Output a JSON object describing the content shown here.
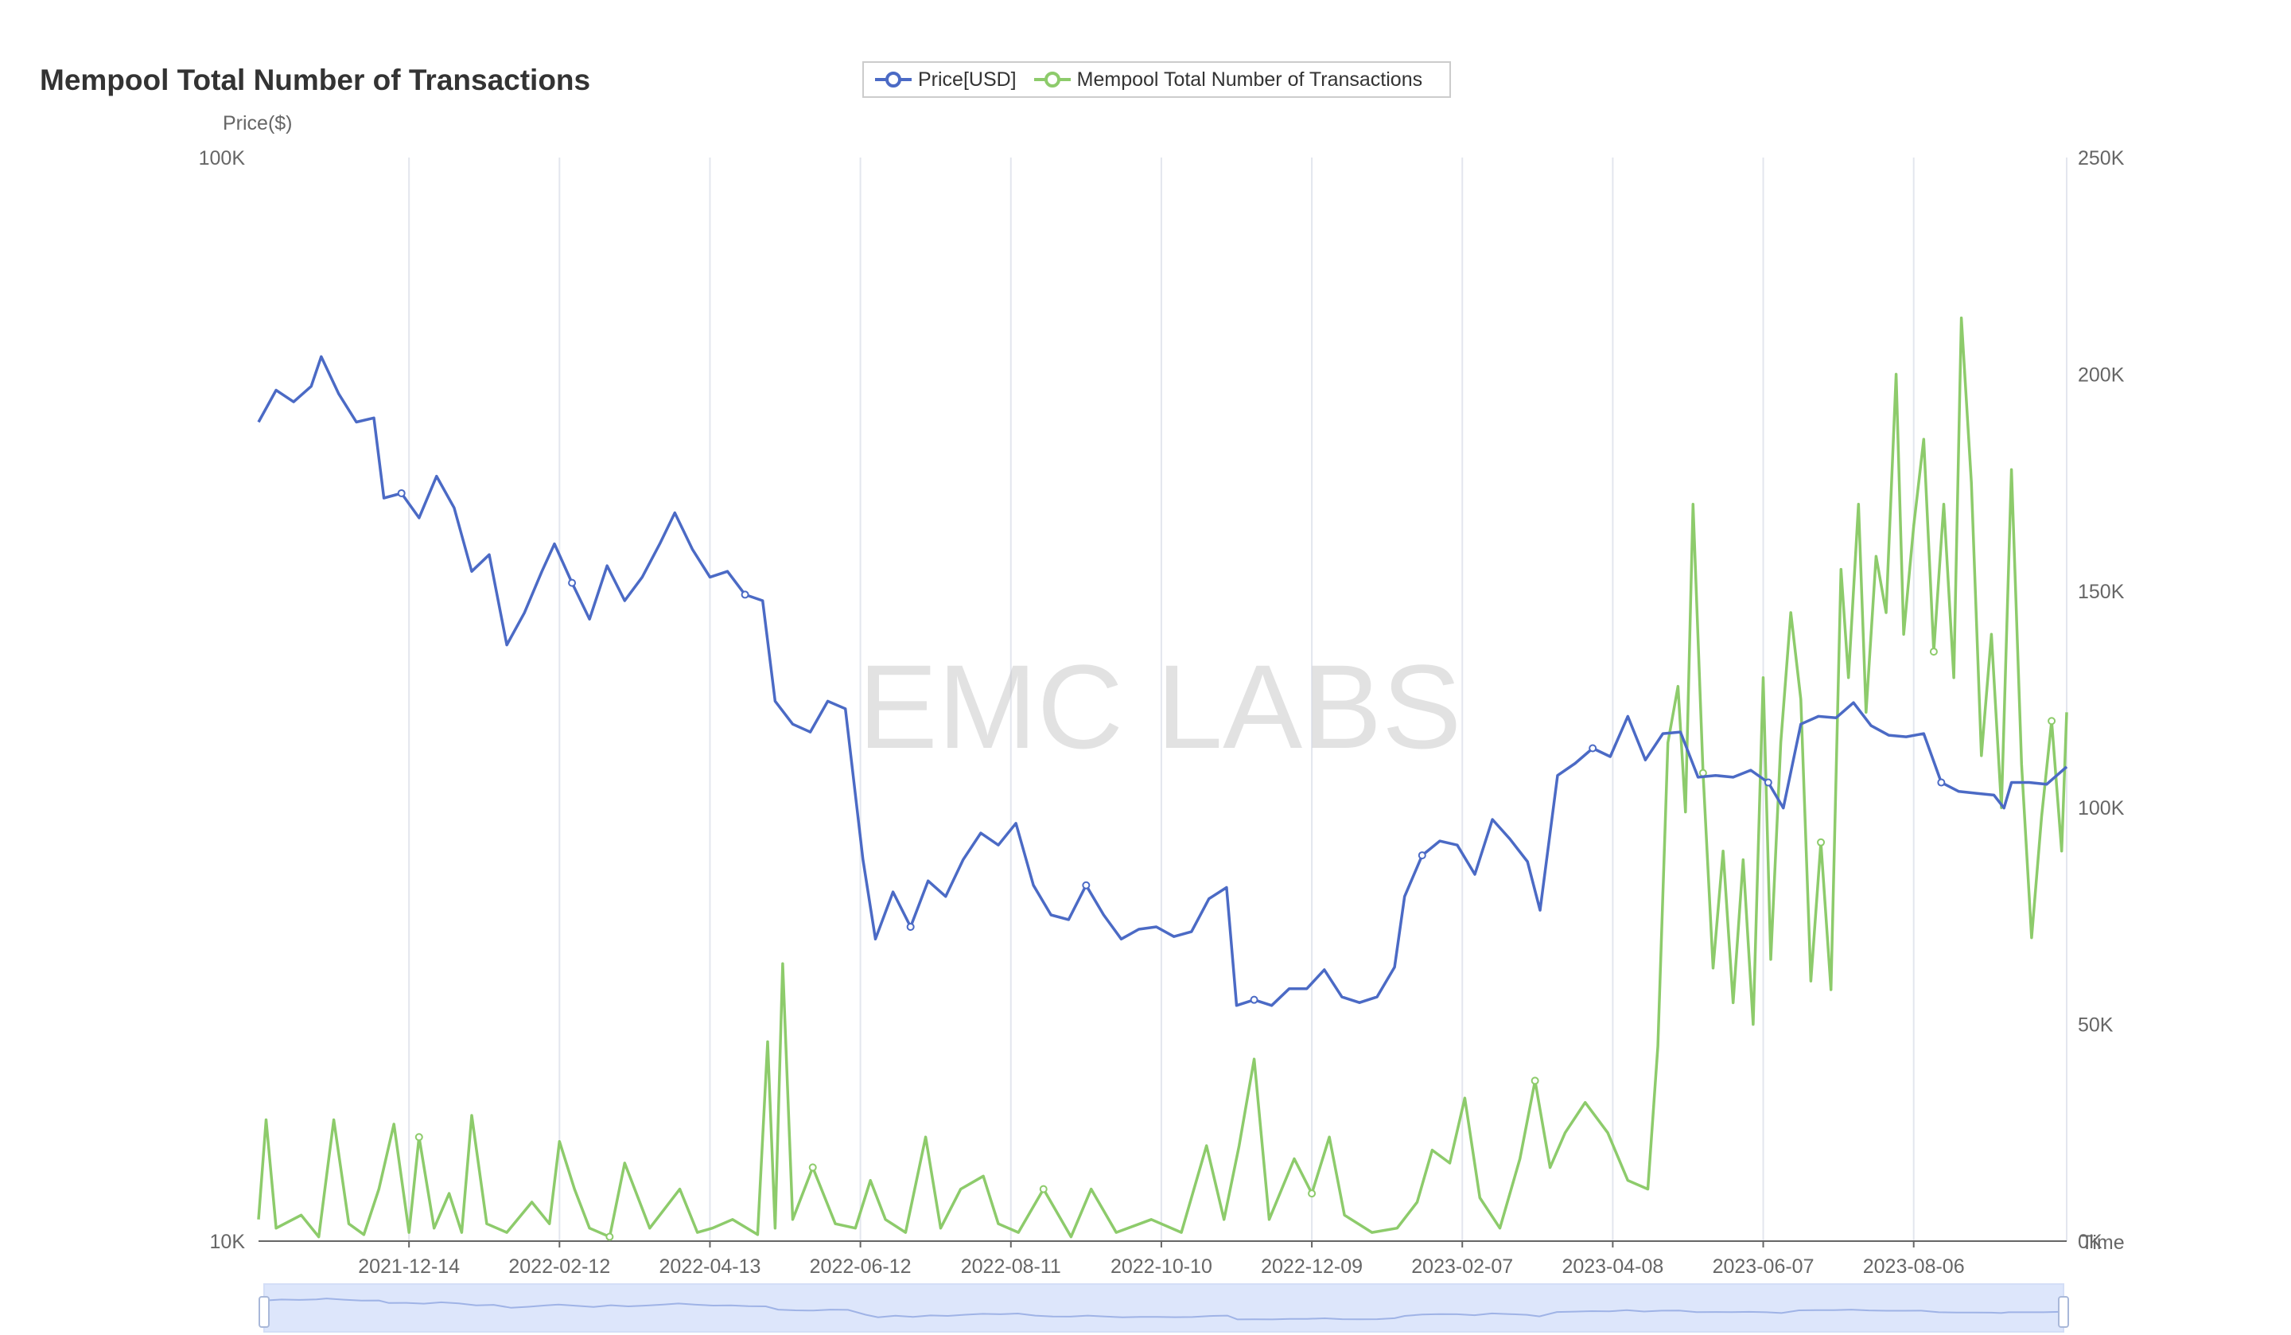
{
  "title": "Mempool Total Number of Transactions",
  "watermark": "EMC LABS",
  "legend": [
    {
      "name": "Price[USD]",
      "color": "#4B6AC5"
    },
    {
      "name": "Mempool Total Number of Transactions",
      "color": "#8DCB6B"
    }
  ],
  "chart_data": {
    "type": "line",
    "title": "Mempool Total Number of Transactions",
    "xlabel": "Time",
    "ylabel": "Price($)",
    "x_ticks": [
      "2021-12-14",
      "2022-02-12",
      "2022-04-13",
      "2022-06-12",
      "2022-08-11",
      "2022-10-10",
      "2022-12-09",
      "2023-02-07",
      "2023-04-08",
      "2023-06-07",
      "2023-08-06"
    ],
    "y_left": {
      "scale": "log",
      "min": 10000,
      "max": 100000,
      "ticks": [
        "10K",
        "100K"
      ]
    },
    "y_right": {
      "scale": "linear",
      "min": 0,
      "max": 250000,
      "ticks": [
        "0K",
        "50K",
        "100K",
        "150K",
        "200K",
        "250K"
      ]
    },
    "grid": "vertical",
    "legend_position": "top-center",
    "series": [
      {
        "name": "Price[USD]",
        "axis": "left",
        "color": "#4B6AC5",
        "points": [
          [
            "2021-10-15",
            57000
          ],
          [
            "2021-10-22",
            61000
          ],
          [
            "2021-10-29",
            59500
          ],
          [
            "2021-11-05",
            61500
          ],
          [
            "2021-11-09",
            65500
          ],
          [
            "2021-11-16",
            60500
          ],
          [
            "2021-11-23",
            57000
          ],
          [
            "2021-11-30",
            57500
          ],
          [
            "2021-12-04",
            48500
          ],
          [
            "2021-12-11",
            49000
          ],
          [
            "2021-12-18",
            46500
          ],
          [
            "2021-12-25",
            50800
          ],
          [
            "2022-01-01",
            47500
          ],
          [
            "2022-01-08",
            41500
          ],
          [
            "2022-01-15",
            43000
          ],
          [
            "2022-01-22",
            35500
          ],
          [
            "2022-01-29",
            38000
          ],
          [
            "2022-02-05",
            41500
          ],
          [
            "2022-02-10",
            44000
          ],
          [
            "2022-02-17",
            40500
          ],
          [
            "2022-02-24",
            37500
          ],
          [
            "2022-03-03",
            42000
          ],
          [
            "2022-03-10",
            39000
          ],
          [
            "2022-03-17",
            41000
          ],
          [
            "2022-03-24",
            44000
          ],
          [
            "2022-03-30",
            47000
          ],
          [
            "2022-04-06",
            43500
          ],
          [
            "2022-04-13",
            41000
          ],
          [
            "2022-04-20",
            41500
          ],
          [
            "2022-04-27",
            39500
          ],
          [
            "2022-05-04",
            39000
          ],
          [
            "2022-05-09",
            31500
          ],
          [
            "2022-05-16",
            30000
          ],
          [
            "2022-05-23",
            29500
          ],
          [
            "2022-05-30",
            31500
          ],
          [
            "2022-06-06",
            31000
          ],
          [
            "2022-06-13",
            22500
          ],
          [
            "2022-06-18",
            19000
          ],
          [
            "2022-06-25",
            21000
          ],
          [
            "2022-07-02",
            19500
          ],
          [
            "2022-07-09",
            21500
          ],
          [
            "2022-07-16",
            20800
          ],
          [
            "2022-07-23",
            22500
          ],
          [
            "2022-07-30",
            23800
          ],
          [
            "2022-08-06",
            23200
          ],
          [
            "2022-08-13",
            24300
          ],
          [
            "2022-08-20",
            21300
          ],
          [
            "2022-08-27",
            20000
          ],
          [
            "2022-09-03",
            19800
          ],
          [
            "2022-09-10",
            21300
          ],
          [
            "2022-09-17",
            20000
          ],
          [
            "2022-09-24",
            19000
          ],
          [
            "2022-10-01",
            19400
          ],
          [
            "2022-10-08",
            19500
          ],
          [
            "2022-10-15",
            19100
          ],
          [
            "2022-10-22",
            19300
          ],
          [
            "2022-10-29",
            20700
          ],
          [
            "2022-11-05",
            21200
          ],
          [
            "2022-11-09",
            16500
          ],
          [
            "2022-11-16",
            16700
          ],
          [
            "2022-11-23",
            16500
          ],
          [
            "2022-11-30",
            17100
          ],
          [
            "2022-12-07",
            17100
          ],
          [
            "2022-12-14",
            17800
          ],
          [
            "2022-12-21",
            16800
          ],
          [
            "2022-12-28",
            16600
          ],
          [
            "2023-01-04",
            16800
          ],
          [
            "2023-01-11",
            17900
          ],
          [
            "2023-01-15",
            20800
          ],
          [
            "2023-01-22",
            22700
          ],
          [
            "2023-01-29",
            23400
          ],
          [
            "2023-02-05",
            23200
          ],
          [
            "2023-02-12",
            21800
          ],
          [
            "2023-02-19",
            24500
          ],
          [
            "2023-02-26",
            23500
          ],
          [
            "2023-03-05",
            22400
          ],
          [
            "2023-03-10",
            20200
          ],
          [
            "2023-03-17",
            26900
          ],
          [
            "2023-03-24",
            27600
          ],
          [
            "2023-03-31",
            28500
          ],
          [
            "2023-04-07",
            28000
          ],
          [
            "2023-04-14",
            30500
          ],
          [
            "2023-04-21",
            27800
          ],
          [
            "2023-04-28",
            29400
          ],
          [
            "2023-05-05",
            29500
          ],
          [
            "2023-05-12",
            26800
          ],
          [
            "2023-05-19",
            26900
          ],
          [
            "2023-05-26",
            26800
          ],
          [
            "2023-06-02",
            27200
          ],
          [
            "2023-06-09",
            26500
          ],
          [
            "2023-06-15",
            25100
          ],
          [
            "2023-06-22",
            30000
          ],
          [
            "2023-06-29",
            30500
          ],
          [
            "2023-07-06",
            30400
          ],
          [
            "2023-07-13",
            31400
          ],
          [
            "2023-07-20",
            29900
          ],
          [
            "2023-07-27",
            29300
          ],
          [
            "2023-08-03",
            29200
          ],
          [
            "2023-08-10",
            29400
          ],
          [
            "2023-08-17",
            26500
          ],
          [
            "2023-08-24",
            26000
          ],
          [
            "2023-08-31",
            25900
          ],
          [
            "2023-09-07",
            25800
          ],
          [
            "2023-09-11",
            25100
          ],
          [
            "2023-09-14",
            26500
          ],
          [
            "2023-09-21",
            26500
          ],
          [
            "2023-09-28",
            26400
          ],
          [
            "2023-10-06",
            27400
          ]
        ]
      },
      {
        "name": "Mempool Total Number of Transactions",
        "axis": "right",
        "color": "#8DCB6B",
        "points": [
          [
            "2021-10-15",
            5000
          ],
          [
            "2021-10-18",
            28000
          ],
          [
            "2021-10-22",
            3000
          ],
          [
            "2021-11-01",
            6000
          ],
          [
            "2021-11-08",
            1000
          ],
          [
            "2021-11-14",
            28000
          ],
          [
            "2021-11-20",
            4000
          ],
          [
            "2021-11-26",
            1500
          ],
          [
            "2021-12-02",
            12000
          ],
          [
            "2021-12-08",
            27000
          ],
          [
            "2021-12-14",
            2000
          ],
          [
            "2021-12-18",
            24000
          ],
          [
            "2021-12-24",
            3000
          ],
          [
            "2021-12-30",
            11000
          ],
          [
            "2022-01-04",
            2000
          ],
          [
            "2022-01-08",
            29000
          ],
          [
            "2022-01-14",
            4000
          ],
          [
            "2022-01-22",
            2000
          ],
          [
            "2022-02-01",
            9000
          ],
          [
            "2022-02-08",
            4000
          ],
          [
            "2022-02-12",
            23000
          ],
          [
            "2022-02-18",
            12000
          ],
          [
            "2022-02-24",
            3000
          ],
          [
            "2022-03-04",
            1000
          ],
          [
            "2022-03-10",
            18000
          ],
          [
            "2022-03-20",
            3000
          ],
          [
            "2022-04-01",
            12000
          ],
          [
            "2022-04-08",
            2000
          ],
          [
            "2022-04-14",
            3000
          ],
          [
            "2022-04-22",
            5000
          ],
          [
            "2022-05-02",
            1500
          ],
          [
            "2022-05-06",
            46000
          ],
          [
            "2022-05-09",
            3000
          ],
          [
            "2022-05-12",
            64000
          ],
          [
            "2022-05-16",
            5000
          ],
          [
            "2022-05-24",
            17000
          ],
          [
            "2022-06-02",
            4000
          ],
          [
            "2022-06-10",
            3000
          ],
          [
            "2022-06-16",
            14000
          ],
          [
            "2022-06-22",
            5000
          ],
          [
            "2022-06-30",
            2000
          ],
          [
            "2022-07-08",
            24000
          ],
          [
            "2022-07-14",
            3000
          ],
          [
            "2022-07-22",
            12000
          ],
          [
            "2022-07-31",
            15000
          ],
          [
            "2022-08-06",
            4000
          ],
          [
            "2022-08-14",
            2000
          ],
          [
            "2022-08-24",
            12000
          ],
          [
            "2022-09-04",
            1000
          ],
          [
            "2022-09-12",
            12000
          ],
          [
            "2022-09-22",
            2000
          ],
          [
            "2022-10-06",
            5000
          ],
          [
            "2022-10-18",
            2000
          ],
          [
            "2022-10-28",
            22000
          ],
          [
            "2022-11-04",
            5000
          ],
          [
            "2022-11-10",
            22000
          ],
          [
            "2022-11-16",
            42000
          ],
          [
            "2022-11-22",
            5000
          ],
          [
            "2022-12-02",
            19000
          ],
          [
            "2022-12-09",
            11000
          ],
          [
            "2022-12-16",
            24000
          ],
          [
            "2022-12-22",
            6000
          ],
          [
            "2023-01-02",
            2000
          ],
          [
            "2023-01-12",
            3000
          ],
          [
            "2023-01-20",
            9000
          ],
          [
            "2023-01-26",
            21000
          ],
          [
            "2023-02-02",
            18000
          ],
          [
            "2023-02-08",
            33000
          ],
          [
            "2023-02-14",
            10000
          ],
          [
            "2023-02-22",
            3000
          ],
          [
            "2023-03-02",
            19000
          ],
          [
            "2023-03-08",
            37000
          ],
          [
            "2023-03-14",
            17000
          ],
          [
            "2023-03-20",
            25000
          ],
          [
            "2023-03-28",
            32000
          ],
          [
            "2023-04-06",
            25000
          ],
          [
            "2023-04-14",
            14000
          ],
          [
            "2023-04-22",
            12000
          ],
          [
            "2023-04-26",
            45000
          ],
          [
            "2023-04-30",
            115000
          ],
          [
            "2023-05-04",
            128000
          ],
          [
            "2023-05-07",
            99000
          ],
          [
            "2023-05-10",
            170000
          ],
          [
            "2023-05-14",
            108000
          ],
          [
            "2023-05-18",
            63000
          ],
          [
            "2023-05-22",
            90000
          ],
          [
            "2023-05-26",
            55000
          ],
          [
            "2023-05-30",
            88000
          ],
          [
            "2023-06-03",
            50000
          ],
          [
            "2023-06-07",
            130000
          ],
          [
            "2023-06-10",
            65000
          ],
          [
            "2023-06-14",
            115000
          ],
          [
            "2023-06-18",
            145000
          ],
          [
            "2023-06-22",
            125000
          ],
          [
            "2023-06-26",
            60000
          ],
          [
            "2023-06-30",
            92000
          ],
          [
            "2023-07-04",
            58000
          ],
          [
            "2023-07-08",
            155000
          ],
          [
            "2023-07-11",
            130000
          ],
          [
            "2023-07-15",
            170000
          ],
          [
            "2023-07-18",
            122000
          ],
          [
            "2023-07-22",
            158000
          ],
          [
            "2023-07-26",
            145000
          ],
          [
            "2023-07-30",
            200000
          ],
          [
            "2023-08-02",
            140000
          ],
          [
            "2023-08-06",
            165000
          ],
          [
            "2023-08-10",
            185000
          ],
          [
            "2023-08-14",
            136000
          ],
          [
            "2023-08-18",
            170000
          ],
          [
            "2023-08-22",
            130000
          ],
          [
            "2023-08-25",
            213000
          ],
          [
            "2023-08-29",
            175000
          ],
          [
            "2023-09-02",
            112000
          ],
          [
            "2023-09-06",
            140000
          ],
          [
            "2023-09-10",
            100000
          ],
          [
            "2023-09-14",
            178000
          ],
          [
            "2023-09-18",
            110000
          ],
          [
            "2023-09-22",
            70000
          ],
          [
            "2023-09-26",
            98000
          ],
          [
            "2023-09-30",
            120000
          ],
          [
            "2023-10-04",
            90000
          ],
          [
            "2023-10-06",
            122000
          ]
        ]
      }
    ]
  }
}
